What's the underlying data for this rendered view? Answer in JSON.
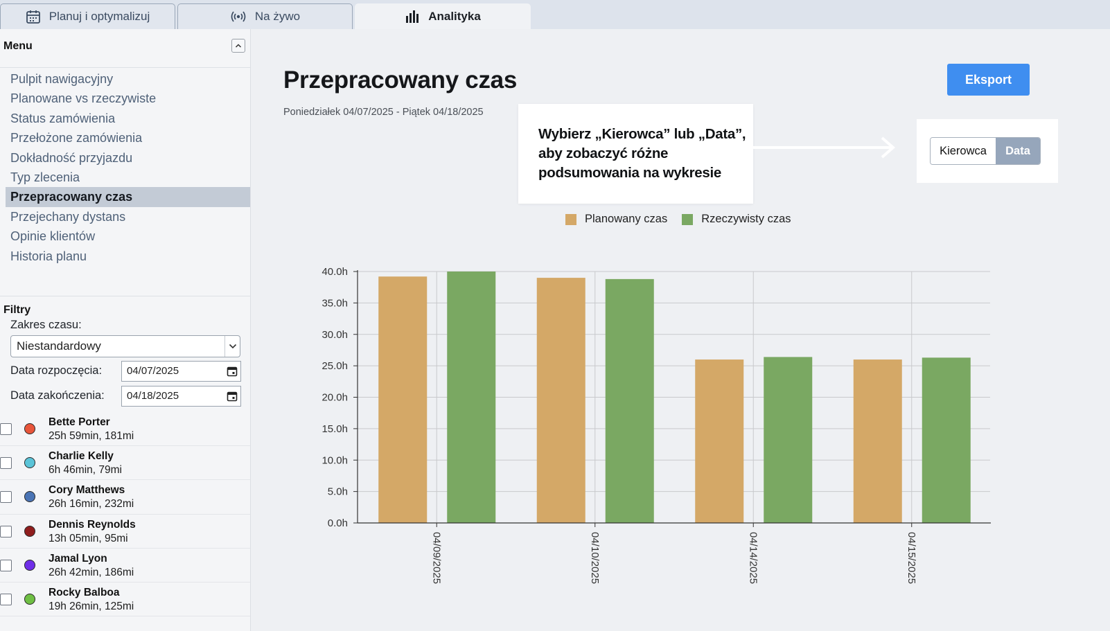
{
  "tabs": [
    {
      "label": "Planuj i optymalizuj",
      "icon": "calendar-icon",
      "active": false
    },
    {
      "label": "Na żywo",
      "icon": "broadcast-icon",
      "active": false
    },
    {
      "label": "Analityka",
      "icon": "bar-chart-icon",
      "active": true
    }
  ],
  "sidebar": {
    "menu_title": "Menu",
    "menu_items": [
      {
        "label": "Pulpit nawigacyjny",
        "active": false
      },
      {
        "label": "Planowane vs rzeczywiste",
        "active": false
      },
      {
        "label": "Status zamówienia",
        "active": false
      },
      {
        "label": "Przełożone zamówienia",
        "active": false
      },
      {
        "label": "Dokładność przyjazdu",
        "active": false
      },
      {
        "label": "Typ zlecenia",
        "active": false
      },
      {
        "label": "Przepracowany czas",
        "active": true
      },
      {
        "label": "Przejechany dystans",
        "active": false
      },
      {
        "label": "Opinie klientów",
        "active": false
      },
      {
        "label": "Historia planu",
        "active": false
      }
    ],
    "filters_title": "Filtry",
    "time_range_label": "Zakres czasu:",
    "time_range_value": "Niestandardowy",
    "start_date_label": "Data rozpoczęcia:",
    "start_date_value": "04/07/2025",
    "end_date_label": "Data zakończenia:",
    "end_date_value": "04/18/2025",
    "drivers": [
      {
        "name": "Bette Porter",
        "stats": "25h 59min, 181mi",
        "color": "#e8553a"
      },
      {
        "name": "Charlie Kelly",
        "stats": "6h 46min, 79mi",
        "color": "#5bc4d8"
      },
      {
        "name": "Cory Matthews",
        "stats": "26h 16min, 232mi",
        "color": "#4a74b5"
      },
      {
        "name": "Dennis Reynolds",
        "stats": "13h 05min, 95mi",
        "color": "#8f1d1d"
      },
      {
        "name": "Jamal Lyon",
        "stats": "26h 42min, 186mi",
        "color": "#6f2ee8"
      },
      {
        "name": "Rocky Balboa",
        "stats": "19h 26min, 125mi",
        "color": "#6fbf44"
      }
    ]
  },
  "main": {
    "title": "Przepracowany czas",
    "subtitle": "Poniedziałek 04/07/2025 - Piątek 04/18/2025",
    "export_label": "Eksport",
    "callout_text": "Wybierz „Kierowca” lub „Data”, aby zobaczyć różne podsumowania na wykresie",
    "toggle": {
      "option_driver": "Kierowca",
      "option_date": "Data",
      "selected": "Data"
    }
  },
  "colors": {
    "planned": "#d4a867",
    "actual": "#7aa862",
    "accent": "#3f8ef0"
  },
  "chart_data": {
    "type": "bar",
    "categories": [
      "04/09/2025",
      "04/10/2025",
      "04/14/2025",
      "04/15/2025"
    ],
    "series": [
      {
        "name": "Planowany czas",
        "values": [
          39.2,
          39.0,
          26.0,
          26.0
        ]
      },
      {
        "name": "Rzeczywisty czas",
        "values": [
          40.0,
          38.8,
          26.4,
          26.3
        ]
      }
    ],
    "yticks": [
      "0.0h",
      "5.0h",
      "10.0h",
      "15.0h",
      "20.0h",
      "25.0h",
      "30.0h",
      "35.0h",
      "40.0h"
    ],
    "ylim": [
      0,
      40
    ],
    "grid": true,
    "legend_position": "top-center"
  }
}
